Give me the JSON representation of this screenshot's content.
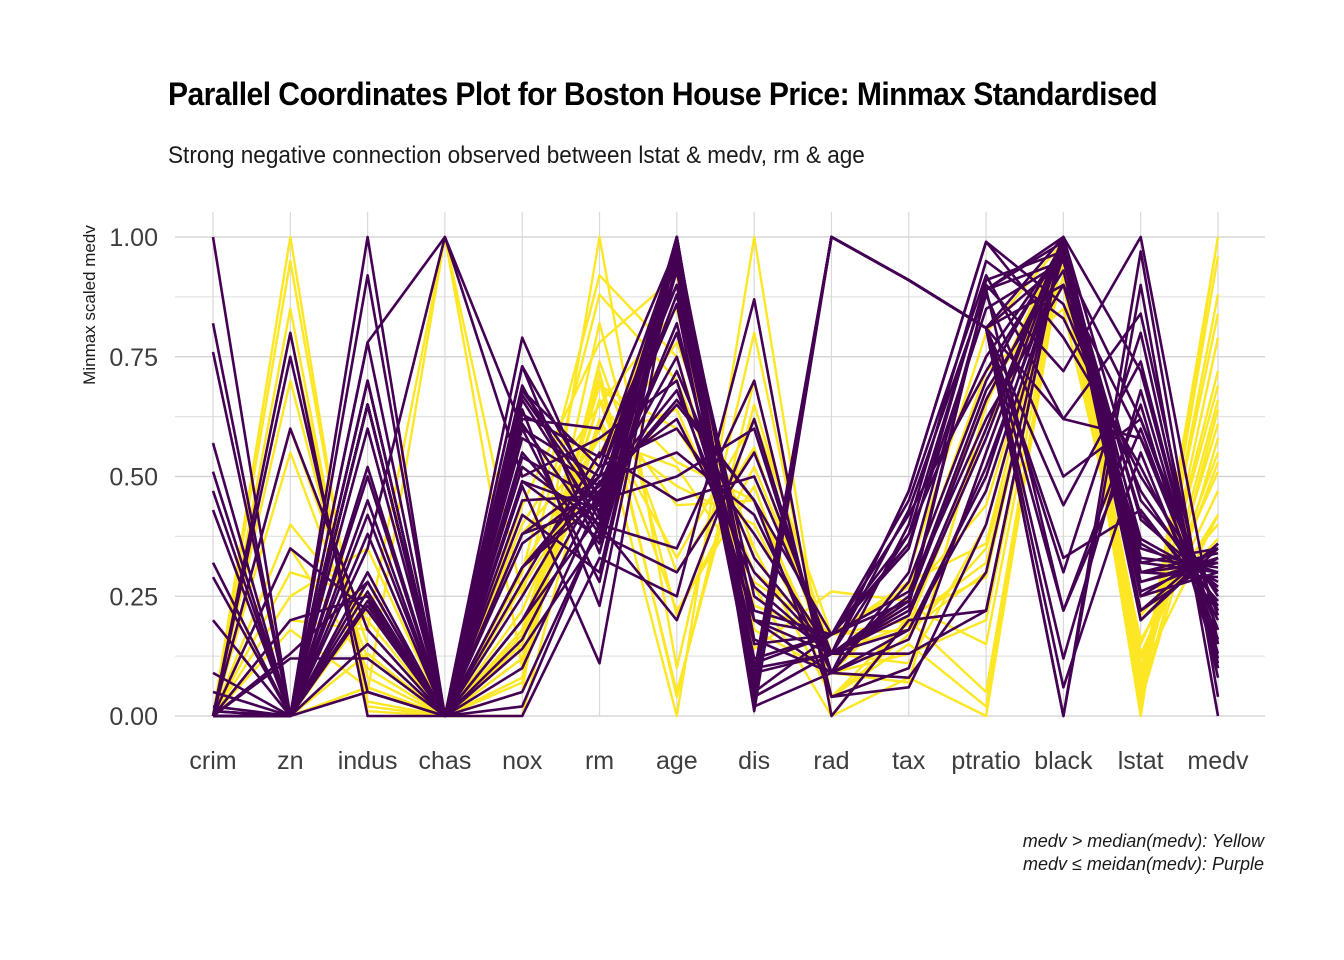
{
  "chart_data": {
    "type": "line",
    "subtype": "parallel-coordinates",
    "title": "Parallel Coordinates Plot for Boston House Price: Minmax Standardised",
    "subtitle": "Strong negative connection observed between lstat & medv, rm & age",
    "ylabel": "Minmax scaled medv",
    "xlabel": "",
    "categories": [
      "crim",
      "zn",
      "indus",
      "chas",
      "nox",
      "rm",
      "age",
      "dis",
      "rad",
      "tax",
      "ptratio",
      "black",
      "lstat",
      "medv"
    ],
    "ylim": [
      0,
      1
    ],
    "yticks": [
      "0.00",
      "0.25",
      "0.50",
      "0.75",
      "1.00"
    ],
    "grid": true,
    "caption": [
      "medv > median(medv): Yellow",
      "medv ≤ meidan(medv): Purple"
    ],
    "colors": {
      "above_median": "#FDE725",
      "below_median": "#440154"
    },
    "series": [
      {
        "group": "above_median",
        "values": [
          0.0,
          0.18,
          0.06,
          0.0,
          0.31,
          0.58,
          0.64,
          0.27,
          0.0,
          0.21,
          0.29,
          1.0,
          0.09,
          0.42
        ]
      },
      {
        "group": "above_median",
        "values": [
          0.0,
          0.0,
          0.24,
          0.0,
          0.17,
          0.55,
          0.78,
          0.35,
          0.04,
          0.1,
          0.55,
          1.0,
          0.2,
          0.37
        ]
      },
      {
        "group": "above_median",
        "values": [
          0.0,
          0.0,
          0.24,
          0.0,
          0.17,
          0.69,
          0.6,
          0.35,
          0.04,
          0.1,
          0.55,
          0.99,
          0.06,
          0.66
        ]
      },
      {
        "group": "above_median",
        "values": [
          0.0,
          0.0,
          0.06,
          0.0,
          0.15,
          0.66,
          0.44,
          0.45,
          0.09,
          0.07,
          0.65,
          0.99,
          0.03,
          0.64
        ]
      },
      {
        "group": "above_median",
        "values": [
          0.0,
          0.0,
          0.06,
          0.0,
          0.15,
          0.69,
          0.53,
          0.45,
          0.09,
          0.07,
          0.65,
          1.0,
          0.1,
          0.69
        ]
      },
      {
        "group": "above_median",
        "values": [
          0.0,
          0.95,
          0.03,
          0.0,
          0.07,
          0.72,
          0.04,
          0.7,
          0.04,
          0.2,
          0.05,
          0.99,
          0.05,
          1.0
        ]
      },
      {
        "group": "above_median",
        "values": [
          0.0,
          0.8,
          0.05,
          1.0,
          0.1,
          0.82,
          0.21,
          0.52,
          0.13,
          0.23,
          0.15,
          0.98,
          0.02,
          0.96
        ]
      },
      {
        "group": "above_median",
        "values": [
          0.0,
          0.55,
          0.12,
          0.0,
          0.12,
          0.62,
          0.33,
          0.62,
          0.17,
          0.18,
          0.3,
          1.0,
          0.12,
          0.55
        ]
      },
      {
        "group": "above_median",
        "values": [
          0.0,
          0.4,
          0.2,
          0.0,
          0.22,
          0.6,
          0.48,
          0.4,
          0.09,
          0.25,
          0.44,
          0.97,
          0.15,
          0.51
        ]
      },
      {
        "group": "above_median",
        "values": [
          0.0,
          0.2,
          0.18,
          1.0,
          0.25,
          0.88,
          0.7,
          0.3,
          0.17,
          0.28,
          0.36,
          0.99,
          0.07,
          0.84
        ]
      },
      {
        "group": "above_median",
        "values": [
          0.0,
          0.3,
          0.25,
          0.0,
          0.4,
          0.65,
          0.85,
          0.2,
          0.13,
          0.19,
          0.6,
          0.94,
          0.13,
          0.47
        ]
      },
      {
        "group": "above_median",
        "values": [
          0.01,
          0.0,
          0.22,
          0.0,
          0.44,
          0.78,
          0.92,
          0.14,
          0.26,
          0.24,
          0.68,
          0.9,
          0.09,
          0.72
        ]
      },
      {
        "group": "above_median",
        "values": [
          0.0,
          0.85,
          0.02,
          0.0,
          0.05,
          1.0,
          0.1,
          0.8,
          0.04,
          0.15,
          0.02,
          0.99,
          0.0,
          1.0
        ]
      },
      {
        "group": "above_median",
        "values": [
          0.0,
          0.7,
          0.08,
          0.0,
          0.08,
          0.74,
          0.3,
          0.56,
          0.09,
          0.13,
          0.2,
          1.0,
          0.04,
          0.79
        ]
      },
      {
        "group": "above_median",
        "values": [
          0.0,
          0.25,
          0.35,
          0.0,
          0.38,
          0.58,
          0.52,
          0.28,
          0.17,
          0.27,
          0.72,
          0.85,
          0.16,
          0.42
        ]
      },
      {
        "group": "above_median",
        "values": [
          0.0,
          0.0,
          0.13,
          0.0,
          0.3,
          0.92,
          0.75,
          0.23,
          0.17,
          0.2,
          0.32,
          0.96,
          0.05,
          0.88
        ]
      },
      {
        "group": "above_median",
        "values": [
          0.0,
          0.6,
          0.15,
          0.0,
          0.18,
          0.7,
          0.05,
          0.65,
          0.13,
          0.11,
          0.4,
          1.0,
          0.08,
          0.61
        ]
      },
      {
        "group": "above_median",
        "values": [
          0.0,
          1.0,
          0.01,
          0.0,
          0.0,
          0.62,
          0.0,
          1.0,
          0.0,
          0.08,
          0.0,
          0.98,
          0.03,
          0.58
        ]
      },
      {
        "group": "above_median",
        "values": [
          0.0,
          0.0,
          0.28,
          0.0,
          0.27,
          0.52,
          0.95,
          0.18,
          0.09,
          0.3,
          0.8,
          0.99,
          0.21,
          0.4
        ]
      },
      {
        "group": "above_median",
        "values": [
          0.0,
          0.35,
          0.1,
          0.0,
          0.12,
          0.66,
          0.22,
          0.48,
          0.04,
          0.17,
          0.35,
          0.92,
          0.1,
          0.53
        ]
      },
      {
        "group": "below_median",
        "values": [
          0.0,
          0.0,
          0.24,
          0.0,
          0.16,
          0.47,
          0.66,
          0.45,
          0.04,
          0.1,
          0.55,
          0.99,
          0.2,
          0.35
        ]
      },
      {
        "group": "below_median",
        "values": [
          0.0,
          0.0,
          0.26,
          0.0,
          0.31,
          0.5,
          0.95,
          0.25,
          0.13,
          0.23,
          0.89,
          0.99,
          0.36,
          0.27
        ]
      },
      {
        "group": "below_median",
        "values": [
          0.01,
          0.0,
          0.28,
          0.0,
          0.31,
          0.45,
          0.98,
          0.2,
          0.13,
          0.23,
          0.89,
          0.95,
          0.42,
          0.24
        ]
      },
      {
        "group": "below_median",
        "values": [
          0.0,
          0.13,
          0.28,
          0.0,
          0.31,
          0.47,
          0.65,
          0.45,
          0.17,
          0.24,
          0.89,
          1.0,
          0.3,
          0.32
        ]
      },
      {
        "group": "below_median",
        "values": [
          0.05,
          0.0,
          0.65,
          0.0,
          0.61,
          0.38,
          1.0,
          0.07,
          1.0,
          0.91,
          0.81,
          0.95,
          0.62,
          0.18
        ]
      },
      {
        "group": "below_median",
        "values": [
          0.09,
          0.0,
          0.65,
          0.0,
          0.68,
          0.46,
          0.99,
          0.05,
          1.0,
          0.91,
          0.81,
          0.9,
          0.58,
          0.22
        ]
      },
      {
        "group": "below_median",
        "values": [
          0.2,
          0.0,
          0.65,
          0.0,
          0.79,
          0.42,
          1.0,
          0.05,
          1.0,
          0.91,
          0.81,
          1.0,
          0.72,
          0.12
        ]
      },
      {
        "group": "below_median",
        "values": [
          0.29,
          0.0,
          0.65,
          0.0,
          0.73,
          0.34,
          0.94,
          0.07,
          1.0,
          0.91,
          0.81,
          0.3,
          0.8,
          0.08
        ]
      },
      {
        "group": "below_median",
        "values": [
          1.0,
          0.0,
          0.65,
          0.0,
          0.63,
          0.54,
          0.9,
          0.09,
          1.0,
          0.91,
          0.81,
          0.33,
          0.43,
          0.22
        ]
      },
      {
        "group": "below_median",
        "values": [
          0.82,
          0.0,
          0.65,
          0.0,
          0.67,
          0.44,
          1.0,
          0.07,
          1.0,
          0.91,
          0.81,
          0.06,
          0.55,
          0.15
        ]
      },
      {
        "group": "below_median",
        "values": [
          0.76,
          0.0,
          0.65,
          0.0,
          0.49,
          0.37,
          0.97,
          0.04,
          1.0,
          0.91,
          0.81,
          0.0,
          0.9,
          0.0
        ]
      },
      {
        "group": "below_median",
        "values": [
          0.57,
          0.0,
          0.65,
          0.0,
          0.6,
          0.28,
          1.0,
          0.01,
          1.0,
          0.91,
          0.81,
          0.0,
          0.97,
          0.04
        ]
      },
      {
        "group": "below_median",
        "values": [
          0.51,
          0.0,
          0.65,
          0.0,
          0.68,
          0.52,
          0.98,
          0.08,
          1.0,
          0.91,
          0.81,
          0.12,
          0.68,
          0.13
        ]
      },
      {
        "group": "below_median",
        "values": [
          0.47,
          0.0,
          0.65,
          0.0,
          0.58,
          0.48,
          0.86,
          0.05,
          1.0,
          0.91,
          0.81,
          0.22,
          0.6,
          0.16
        ]
      },
      {
        "group": "below_median",
        "values": [
          0.43,
          0.0,
          0.65,
          0.0,
          0.52,
          0.4,
          0.93,
          0.06,
          1.0,
          0.91,
          0.81,
          0.44,
          0.74,
          0.11
        ]
      },
      {
        "group": "below_median",
        "values": [
          0.32,
          0.0,
          0.65,
          0.0,
          0.64,
          0.23,
          1.0,
          0.03,
          1.0,
          0.91,
          0.81,
          0.62,
          0.84,
          0.1
        ]
      },
      {
        "group": "below_median",
        "values": [
          0.0,
          0.8,
          0.0,
          0.0,
          0.0,
          0.33,
          0.25,
          0.87,
          0.0,
          0.2,
          0.22,
          1.0,
          0.25,
          0.3
        ]
      },
      {
        "group": "below_median",
        "values": [
          0.0,
          0.75,
          0.05,
          0.0,
          0.02,
          0.4,
          0.35,
          0.7,
          0.04,
          0.06,
          0.4,
          0.98,
          0.3,
          0.29
        ]
      },
      {
        "group": "below_median",
        "values": [
          0.0,
          0.6,
          0.18,
          0.0,
          0.1,
          0.45,
          0.5,
          0.6,
          0.09,
          0.16,
          0.52,
          0.96,
          0.33,
          0.31
        ]
      },
      {
        "group": "below_median",
        "values": [
          0.0,
          0.35,
          0.22,
          0.0,
          0.2,
          0.42,
          0.72,
          0.33,
          0.13,
          0.22,
          0.6,
          1.0,
          0.45,
          0.26
        ]
      },
      {
        "group": "below_median",
        "values": [
          0.0,
          0.0,
          1.0,
          0.0,
          0.69,
          0.39,
          0.94,
          0.04,
          0.13,
          0.47,
          0.99,
          0.79,
          0.52,
          0.2
        ]
      },
      {
        "group": "below_median",
        "values": [
          0.0,
          0.0,
          0.92,
          0.0,
          0.66,
          0.41,
          1.0,
          0.04,
          0.13,
          0.47,
          0.99,
          0.86,
          0.47,
          0.23
        ]
      },
      {
        "group": "below_median",
        "values": [
          0.0,
          0.0,
          0.78,
          0.0,
          0.54,
          0.45,
          0.88,
          0.12,
          0.17,
          0.35,
          0.91,
          0.97,
          0.41,
          0.27
        ]
      },
      {
        "group": "below_median",
        "values": [
          0.0,
          0.0,
          0.7,
          0.0,
          0.49,
          0.43,
          0.82,
          0.15,
          0.17,
          0.36,
          0.85,
          0.95,
          0.37,
          0.28
        ]
      },
      {
        "group": "below_median",
        "values": [
          0.0,
          0.0,
          0.5,
          0.0,
          0.45,
          0.46,
          0.75,
          0.2,
          0.09,
          0.28,
          0.7,
          0.99,
          0.32,
          0.3
        ]
      },
      {
        "group": "below_median",
        "values": [
          0.0,
          0.0,
          0.42,
          0.0,
          0.36,
          0.48,
          0.68,
          0.27,
          0.13,
          0.25,
          0.68,
          0.93,
          0.28,
          0.33
        ]
      },
      {
        "group": "below_median",
        "values": [
          0.0,
          0.0,
          0.3,
          0.0,
          0.38,
          0.44,
          0.8,
          0.22,
          0.17,
          0.26,
          0.62,
          0.9,
          0.35,
          0.3
        ]
      },
      {
        "group": "below_median",
        "values": [
          0.0,
          0.0,
          0.35,
          1.0,
          0.6,
          0.5,
          0.9,
          0.1,
          0.13,
          0.38,
          0.75,
          0.98,
          0.3,
          0.34
        ]
      },
      {
        "group": "below_median",
        "values": [
          0.0,
          0.0,
          0.23,
          0.0,
          0.25,
          0.52,
          0.6,
          0.38,
          0.13,
          0.21,
          0.58,
          1.0,
          0.25,
          0.35
        ]
      },
      {
        "group": "below_median",
        "values": [
          0.0,
          0.0,
          0.15,
          0.0,
          0.2,
          0.49,
          0.55,
          0.42,
          0.09,
          0.18,
          0.5,
          0.99,
          0.22,
          0.36
        ]
      },
      {
        "group": "below_median",
        "values": [
          0.02,
          0.0,
          0.7,
          0.0,
          0.73,
          0.45,
          0.96,
          0.09,
          0.13,
          0.43,
          0.89,
          0.22,
          0.65,
          0.1
        ]
      },
      {
        "group": "below_median",
        "values": [
          0.01,
          0.0,
          0.7,
          0.0,
          0.55,
          0.36,
          0.93,
          0.11,
          0.17,
          0.45,
          0.92,
          0.62,
          0.58,
          0.18
        ]
      },
      {
        "group": "below_median",
        "values": [
          0.0,
          0.0,
          0.38,
          0.0,
          0.42,
          0.3,
          0.99,
          0.16,
          0.09,
          0.3,
          0.88,
          0.5,
          0.62,
          0.21
        ]
      },
      {
        "group": "below_median",
        "values": [
          0.0,
          0.2,
          0.25,
          0.0,
          0.28,
          0.55,
          0.45,
          0.5,
          0.13,
          0.18,
          0.47,
          0.96,
          0.2,
          0.36
        ]
      },
      {
        "group": "below_median",
        "values": [
          0.0,
          0.0,
          0.05,
          0.0,
          0.05,
          0.4,
          0.2,
          0.62,
          0.09,
          0.08,
          0.3,
          1.0,
          0.22,
          0.33
        ]
      },
      {
        "group": "below_median",
        "values": [
          0.0,
          0.0,
          0.78,
          1.0,
          0.5,
          0.58,
          0.7,
          0.2,
          0.17,
          0.42,
          0.72,
          0.98,
          0.32,
          0.35
        ]
      },
      {
        "group": "below_median",
        "values": [
          0.0,
          0.12,
          0.12,
          0.0,
          0.14,
          0.38,
          0.3,
          0.55,
          0.13,
          0.13,
          0.22,
          1.0,
          0.26,
          0.33
        ]
      },
      {
        "group": "below_median",
        "values": [
          0.0,
          0.0,
          0.52,
          0.0,
          0.48,
          0.11,
          1.0,
          0.05,
          0.17,
          0.38,
          0.9,
          0.72,
          1.0,
          0.15
        ]
      },
      {
        "group": "below_median",
        "values": [
          0.0,
          0.0,
          0.6,
          0.0,
          0.62,
          0.6,
          0.98,
          0.02,
          0.09,
          0.4,
          0.95,
          0.83,
          0.5,
          0.25
        ]
      },
      {
        "group": "below_median",
        "values": [
          0.0,
          0.0,
          0.45,
          0.0,
          0.38,
          0.5,
          0.62,
          0.3,
          0.13,
          0.24,
          0.66,
          0.97,
          0.28,
          0.32
        ]
      }
    ]
  }
}
